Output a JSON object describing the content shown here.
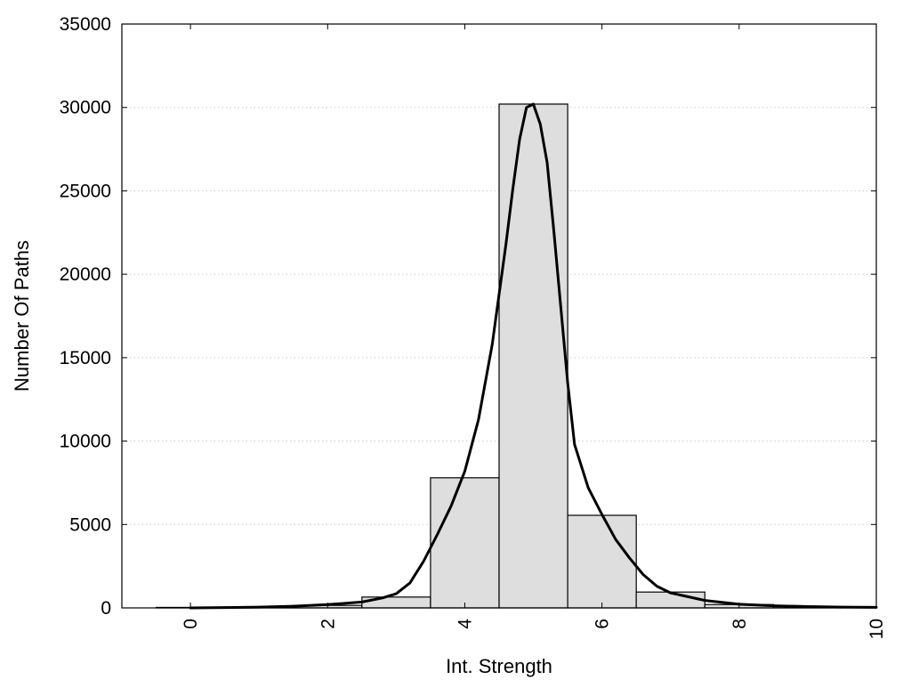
{
  "chart_data": {
    "type": "bar",
    "title": "",
    "xlabel": "Int. Strength",
    "ylabel": "Number Of Paths",
    "xlim": [
      -1,
      10
    ],
    "ylim": [
      0,
      35000
    ],
    "x_ticks": [
      0,
      2,
      4,
      6,
      8,
      10
    ],
    "y_ticks": [
      0,
      5000,
      10000,
      15000,
      20000,
      25000,
      30000,
      35000
    ],
    "grid": "horizontal dotted",
    "legend": "none",
    "bin_width": 1,
    "bins": {
      "x": [
        0,
        1,
        2,
        3,
        4,
        5,
        6,
        7,
        8,
        9
      ],
      "values": [
        30,
        60,
        150,
        650,
        7800,
        30200,
        5550,
        950,
        200,
        80
      ]
    },
    "fit_curve": {
      "x": [
        0,
        0.5,
        1,
        1.5,
        2,
        2.5,
        2.8,
        3,
        3.2,
        3.4,
        3.6,
        3.8,
        4,
        4.2,
        4.4,
        4.6,
        4.7,
        4.8,
        4.9,
        5,
        5.1,
        5.2,
        5.3,
        5.4,
        5.5,
        5.6,
        5.8,
        6,
        6.2,
        6.4,
        6.6,
        6.8,
        7,
        7.5,
        8,
        8.5,
        9,
        9.5,
        10
      ],
      "y": [
        0,
        20,
        50,
        100,
        200,
        350,
        600,
        850,
        1500,
        2800,
        4400,
        6100,
        8200,
        11300,
        15800,
        21800,
        25100,
        28100,
        30000,
        30200,
        29000,
        26700,
        22500,
        18000,
        13500,
        9800,
        7200,
        5600,
        4100,
        3000,
        2000,
        1300,
        900,
        450,
        220,
        130,
        80,
        50,
        30
      ]
    },
    "colors": {
      "bar_fill": "#dedede",
      "bar_stroke": "#000000",
      "curve": "#000000",
      "grid": "#c8c8c8"
    }
  }
}
